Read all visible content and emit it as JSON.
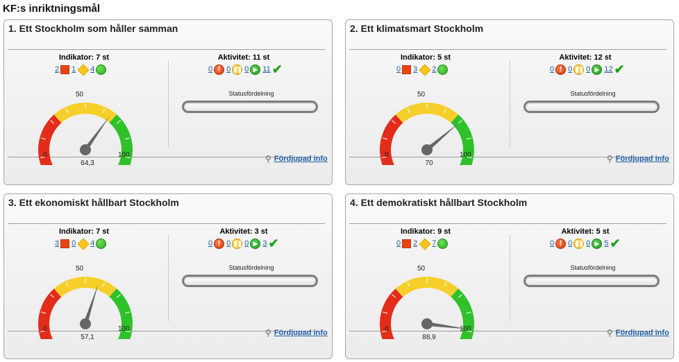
{
  "page_title": "KF:s inriktningsmål",
  "common": {
    "indicator_prefix": "Indikator: ",
    "activity_prefix": "Aktivitet: ",
    "status_label": "Statusfördelning",
    "more_info": "Fördjupad info",
    "gauge_min": "0",
    "gauge_mid": "50",
    "gauge_max": "100"
  },
  "panels": [
    {
      "title": "1. Ett Stockholm som håller samman",
      "indicator_label": "Indikator: 7 st",
      "indicator_counts": {
        "red": "2",
        "yellow": "1",
        "green": "4"
      },
      "activity_label": "Aktivitet: 11 st",
      "activity_counts": {
        "warning": "0",
        "paused": "0",
        "ongoing": "0",
        "done": "11"
      },
      "gauge_value": 64.3,
      "gauge_value_text": "64,3"
    },
    {
      "title": "2. Ett klimatsmart Stockholm",
      "indicator_label": "Indikator: 5 st",
      "indicator_counts": {
        "red": "0",
        "yellow": "3",
        "green": "2"
      },
      "activity_label": "Aktivitet: 12 st",
      "activity_counts": {
        "warning": "0",
        "paused": "0",
        "ongoing": "0",
        "done": "12"
      },
      "gauge_value": 70,
      "gauge_value_text": "70"
    },
    {
      "title": "3. Ett ekonomiskt hållbart Stockholm",
      "indicator_label": "Indikator: 7 st",
      "indicator_counts": {
        "red": "3",
        "yellow": "0",
        "green": "4"
      },
      "activity_label": "Aktivitet: 3 st",
      "activity_counts": {
        "warning": "0",
        "paused": "0",
        "ongoing": "0",
        "done": "3"
      },
      "gauge_value": 57.1,
      "gauge_value_text": "57,1"
    },
    {
      "title": "4. Ett demokratiskt hållbart Stockholm",
      "indicator_label": "Indikator: 9 st",
      "indicator_counts": {
        "red": "0",
        "yellow": "2",
        "green": "7"
      },
      "activity_label": "Aktivitet: 5 st",
      "activity_counts": {
        "warning": "0",
        "paused": "0",
        "ongoing": "0",
        "done": "5"
      },
      "gauge_value": 88.9,
      "gauge_value_text": "88,9"
    }
  ],
  "colors": {
    "gauge_red": "#e32c1a",
    "gauge_yellow": "#f6cf2a",
    "gauge_green": "#2fc12a",
    "needle": "#666666",
    "link": "#1f5fa6"
  }
}
